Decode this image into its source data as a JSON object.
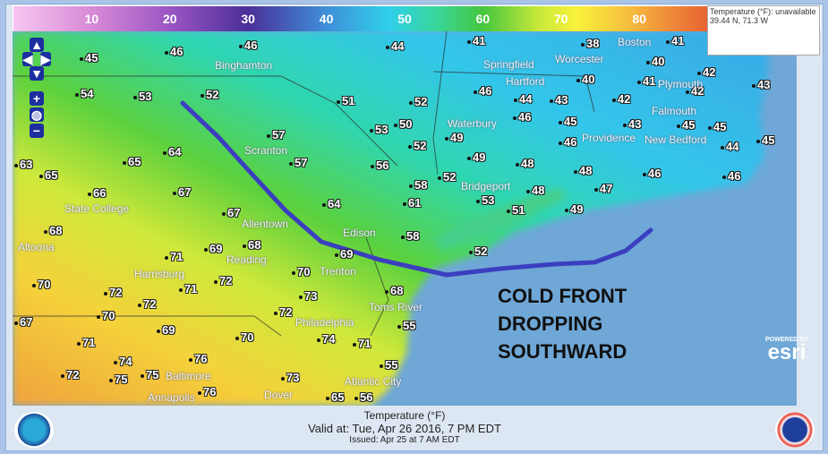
{
  "legend": {
    "title": "Temperature color scale",
    "ticks": [
      "10",
      "20",
      "30",
      "40",
      "50",
      "60",
      "70",
      "80",
      "90"
    ]
  },
  "info_box": {
    "line1": "Temperature (°F): unavailable",
    "line2": "39.44 N, 71.3 W"
  },
  "nav": {
    "up": "▲",
    "down": "▼",
    "left": "◀",
    "right": "▶",
    "zoom_in": "+",
    "zoom_out": "−",
    "globe": "◍"
  },
  "temperatures": [
    "45",
    "46",
    "46",
    "44",
    "41",
    "38",
    "41",
    "40",
    "42",
    "43",
    "42",
    "41",
    "40",
    "42",
    "43",
    "44",
    "46",
    "52",
    "53",
    "54",
    "51",
    "52",
    "50",
    "53",
    "57",
    "49",
    "46",
    "45",
    "46",
    "43",
    "45",
    "45",
    "44",
    "45",
    "63",
    "65",
    "65",
    "64",
    "57",
    "56",
    "52",
    "48",
    "48",
    "46",
    "46",
    "52",
    "49",
    "58",
    "48",
    "47",
    "66",
    "67",
    "53",
    "51",
    "49",
    "61",
    "67",
    "64",
    "58",
    "68",
    "52",
    "69",
    "71",
    "69",
    "68",
    "70",
    "72",
    "71",
    "72",
    "70",
    "72",
    "68",
    "73",
    "70",
    "72",
    "55",
    "69",
    "74",
    "70",
    "71",
    "71",
    "74",
    "76",
    "55",
    "72",
    "75",
    "75",
    "73",
    "76",
    "65",
    "56",
    "67"
  ],
  "cities": [
    "Binghamton",
    "Scranton",
    "State College",
    "Altoona",
    "Harrisburg",
    "Reading",
    "Allentown",
    "Edison",
    "Trenton",
    "Philadelphia",
    "Toms River",
    "Baltimore",
    "Annapolis",
    "Dover",
    "Atlantic City",
    "Hartford",
    "Waterbury",
    "Bridgeport",
    "Springfield",
    "Worcester",
    "Boston",
    "Providence",
    "New Bedford",
    "Falmouth",
    "Plymouth"
  ],
  "annotation": {
    "line1": "COLD FRONT",
    "line2": "DROPPING",
    "line3": "SOUTHWARD",
    "color": "#3b3fbf"
  },
  "esri": {
    "powered": "POWERED BY",
    "name": "esri"
  },
  "footer": {
    "title": "Temperature (°F)",
    "valid": "Valid at: Tue, Apr 26 2016,   7 PM EDT",
    "issued": "Issued: Apr 25 at 7 AM EDT"
  }
}
